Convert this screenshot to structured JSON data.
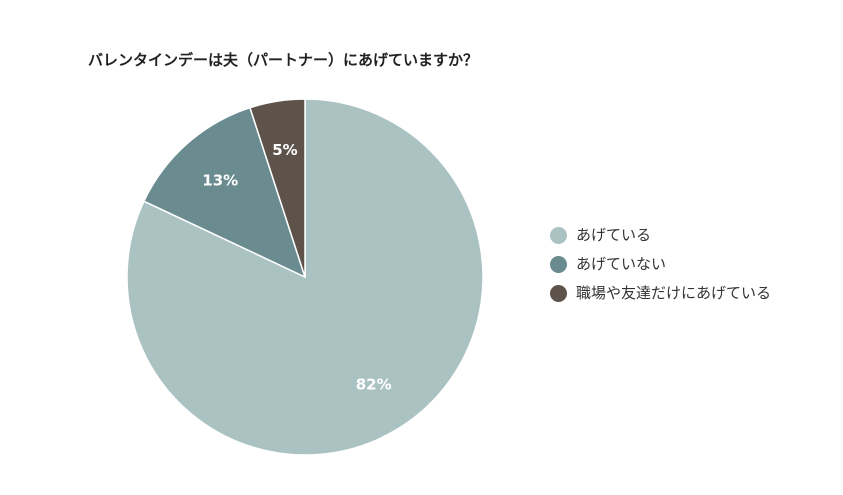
{
  "chart_data": {
    "type": "pie",
    "title": "バレンタインデーは夫（パートナー）にあげていますか？",
    "categories": [
      "あげている",
      "あげていない",
      "職場や友達だけにあげている"
    ],
    "values": [
      82,
      13,
      5
    ],
    "value_labels": [
      "82%",
      "13%",
      "5%"
    ],
    "colors": [
      "#abc2c3",
      "#6a8c90",
      "#5e534b"
    ],
    "legend_position": "right"
  }
}
